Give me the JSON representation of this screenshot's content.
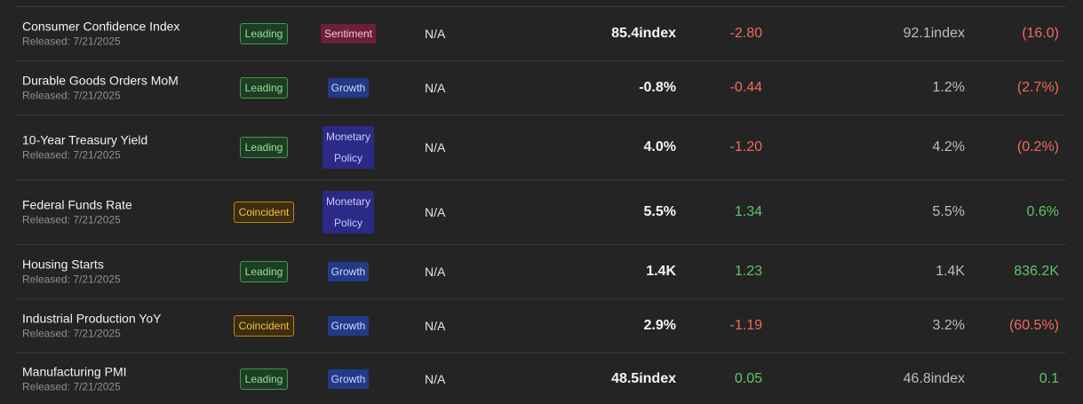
{
  "rows": [
    {
      "name": "Consumer Confidence Index",
      "released": "Released: 7/21/2025",
      "type": "Leading",
      "type_kind": "leading",
      "category": [
        "Sentiment"
      ],
      "category_kind": "sentiment",
      "forecast": "N/A",
      "actual": "85.4index",
      "change": "-2.80",
      "change_dir": "neg",
      "previous": "92.1index",
      "pct": "(16.0)",
      "pct_dir": "neg"
    },
    {
      "name": "Durable Goods Orders MoM",
      "released": "Released: 7/21/2025",
      "type": "Leading",
      "type_kind": "leading",
      "category": [
        "Growth"
      ],
      "category_kind": "growth",
      "forecast": "N/A",
      "actual": "-0.8%",
      "change": "-0.44",
      "change_dir": "neg",
      "previous": "1.2%",
      "pct": "(2.7%)",
      "pct_dir": "neg"
    },
    {
      "name": "10-Year Treasury Yield",
      "released": "Released: 7/21/2025",
      "type": "Leading",
      "type_kind": "leading",
      "category": [
        "Monetary",
        "Policy"
      ],
      "category_kind": "monetary",
      "forecast": "N/A",
      "actual": "4.0%",
      "change": "-1.20",
      "change_dir": "neg",
      "previous": "4.2%",
      "pct": "(0.2%)",
      "pct_dir": "neg"
    },
    {
      "name": "Federal Funds Rate",
      "released": "Released: 7/21/2025",
      "type": "Coincident",
      "type_kind": "coincident",
      "category": [
        "Monetary",
        "Policy"
      ],
      "category_kind": "monetary",
      "forecast": "N/A",
      "actual": "5.5%",
      "change": "1.34",
      "change_dir": "pos",
      "previous": "5.5%",
      "pct": "0.6%",
      "pct_dir": "pos"
    },
    {
      "name": "Housing Starts",
      "released": "Released: 7/21/2025",
      "type": "Leading",
      "type_kind": "leading",
      "category": [
        "Growth"
      ],
      "category_kind": "growth",
      "forecast": "N/A",
      "actual": "1.4K",
      "change": "1.23",
      "change_dir": "pos",
      "previous": "1.4K",
      "pct": "836.2K",
      "pct_dir": "pos"
    },
    {
      "name": "Industrial Production YoY",
      "released": "Released: 7/21/2025",
      "type": "Coincident",
      "type_kind": "coincident",
      "category": [
        "Growth"
      ],
      "category_kind": "growth",
      "forecast": "N/A",
      "actual": "2.9%",
      "change": "-1.19",
      "change_dir": "neg",
      "previous": "3.2%",
      "pct": "(60.5%)",
      "pct_dir": "neg"
    },
    {
      "name": "Manufacturing PMI",
      "released": "Released: 7/21/2025",
      "type": "Leading",
      "type_kind": "leading",
      "category": [
        "Growth"
      ],
      "category_kind": "growth",
      "forecast": "N/A",
      "actual": "48.5index",
      "change": "0.05",
      "change_dir": "pos",
      "previous": "46.8index",
      "pct": "0.1",
      "pct_dir": "pos"
    }
  ],
  "colors": {
    "positive": "#62c466",
    "negative": "#ef6a5e",
    "leading": "#8fe39b",
    "coincident": "#f5c04a",
    "sentiment": "#6b1f3a",
    "growth": "#233a86",
    "monetary": "#2b2a86"
  }
}
